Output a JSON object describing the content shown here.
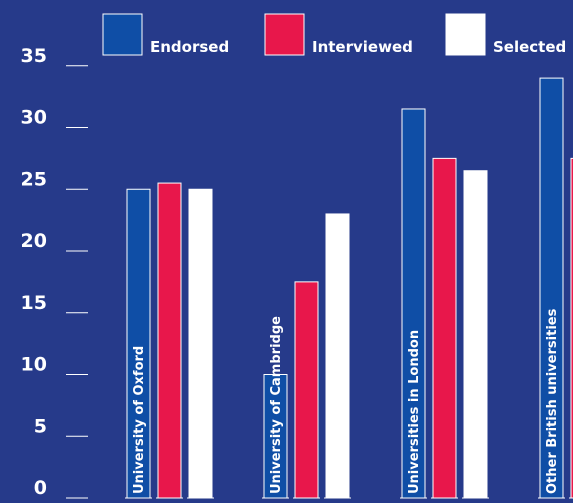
{
  "chart_data": {
    "type": "bar",
    "categories": [
      "University of Oxford",
      "University of Cambridge",
      "Universities in London",
      "Other British universities"
    ],
    "series": [
      {
        "name": "Endorsed",
        "values": [
          25,
          10,
          31.5,
          34
        ]
      },
      {
        "name": "Interviewed",
        "values": [
          25.5,
          17.5,
          27.5,
          27.5
        ]
      },
      {
        "name": "Selected",
        "values": [
          25,
          23,
          26.5,
          0
        ]
      }
    ],
    "yticks": [
      0,
      5,
      10,
      15,
      20,
      25,
      30,
      35
    ],
    "ylim": [
      0,
      38
    ],
    "legend_position": "top",
    "colors": {
      "background": "#263a8a",
      "Endorsed": "#0f4ea6",
      "Interviewed": "#e8174b",
      "Selected": "#ffffff",
      "text": "#ffffff"
    }
  }
}
